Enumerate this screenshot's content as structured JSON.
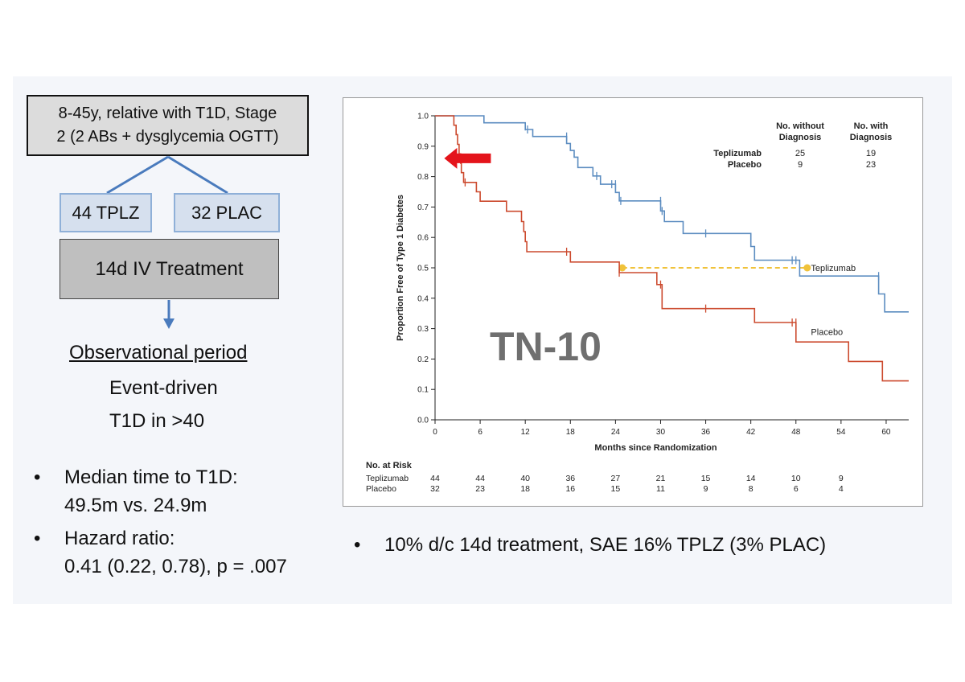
{
  "flow": {
    "top_box": [
      "8-45y, relative with T1D, Stage",
      "2 (2 ABs +  dysglycemia OGTT)"
    ],
    "arm_tplz": "44 TPLZ",
    "arm_plac": "32 PLAC",
    "treatment": "14d IV Treatment",
    "observational": "Observational period",
    "event_driven": "Event-driven",
    "t1d_count": "T1D in >40"
  },
  "bullets": {
    "median_label": "Median time to T1D:",
    "median_value": "49.5m vs. 24.9m",
    "hazard_label": "Hazard ratio:",
    "hazard_value": "0.41 (0.22, 0.78), p = .007",
    "safety": "10% d/c 14d treatment, SAE 16% TPLZ (3% PLAC)",
    "bullet_symbol": "•"
  },
  "colors": {
    "teplizumab": "#5b8cc0",
    "placebo": "#cc4a2e",
    "median_line": "#f0c23a",
    "arrow": "#e4141b",
    "watermark": "#6f6f6f"
  },
  "chart_data": {
    "type": "line",
    "step": true,
    "watermark": "TN-10",
    "xlabel": "Months since Randomization",
    "ylabel": "Proportion Free of Type 1 Diabetes",
    "xlim": [
      0,
      63
    ],
    "ylim": [
      0,
      1.0
    ],
    "xticks": [
      0,
      6,
      12,
      18,
      24,
      30,
      36,
      42,
      48,
      54,
      60
    ],
    "yticks": [
      0.0,
      0.1,
      0.2,
      0.3,
      0.4,
      0.5,
      0.6,
      0.7,
      0.8,
      0.9,
      1.0
    ],
    "grid": false,
    "summary_table": {
      "headers": [
        "No. without Diagnosis",
        "No. with Diagnosis"
      ],
      "rows": [
        {
          "name": "Teplizumab",
          "without": "25",
          "with": "19"
        },
        {
          "name": "Placebo",
          "without": "9",
          "with": "23"
        }
      ]
    },
    "series": [
      {
        "name": "Teplizumab",
        "points": [
          [
            0,
            1.0
          ],
          [
            6.5,
            1.0
          ],
          [
            6.5,
            0.977
          ],
          [
            12,
            0.977
          ],
          [
            12,
            0.955
          ],
          [
            13,
            0.955
          ],
          [
            13,
            0.932
          ],
          [
            17.5,
            0.932
          ],
          [
            17.5,
            0.909
          ],
          [
            18,
            0.909
          ],
          [
            18,
            0.886
          ],
          [
            18.5,
            0.886
          ],
          [
            18.5,
            0.864
          ],
          [
            19,
            0.864
          ],
          [
            19,
            0.83
          ],
          [
            21,
            0.83
          ],
          [
            21,
            0.802
          ],
          [
            22,
            0.802
          ],
          [
            22,
            0.775
          ],
          [
            24,
            0.775
          ],
          [
            24,
            0.748
          ],
          [
            24.5,
            0.748
          ],
          [
            24.5,
            0.72
          ],
          [
            30,
            0.72
          ],
          [
            30,
            0.687
          ],
          [
            30.5,
            0.687
          ],
          [
            30.5,
            0.652
          ],
          [
            33,
            0.652
          ],
          [
            33,
            0.613
          ],
          [
            42,
            0.613
          ],
          [
            42,
            0.57
          ],
          [
            42.5,
            0.57
          ],
          [
            42.5,
            0.525
          ],
          [
            48.5,
            0.525
          ],
          [
            48.5,
            0.473
          ],
          [
            59,
            0.473
          ],
          [
            59,
            0.414
          ],
          [
            59.8,
            0.414
          ],
          [
            59.8,
            0.355
          ],
          [
            63,
            0.355
          ]
        ],
        "censor": [
          [
            12,
            0.965
          ],
          [
            12.3,
            0.955
          ],
          [
            17.5,
            0.932
          ],
          [
            21.5,
            0.802
          ],
          [
            23.5,
            0.775
          ],
          [
            24,
            0.775
          ],
          [
            24.7,
            0.72
          ],
          [
            30,
            0.72
          ],
          [
            30.2,
            0.687
          ],
          [
            36,
            0.613
          ],
          [
            47.5,
            0.525
          ],
          [
            48,
            0.525
          ],
          [
            59,
            0.473
          ]
        ]
      },
      {
        "name": "Placebo",
        "points": [
          [
            0,
            1.0
          ],
          [
            2.5,
            1.0
          ],
          [
            2.5,
            0.969
          ],
          [
            2.8,
            0.969
          ],
          [
            2.8,
            0.938
          ],
          [
            3,
            0.938
          ],
          [
            3,
            0.906
          ],
          [
            3.2,
            0.906
          ],
          [
            3.2,
            0.875
          ],
          [
            3.4,
            0.875
          ],
          [
            3.4,
            0.844
          ],
          [
            3.5,
            0.844
          ],
          [
            3.5,
            0.813
          ],
          [
            3.8,
            0.813
          ],
          [
            3.8,
            0.781
          ],
          [
            5.5,
            0.781
          ],
          [
            5.5,
            0.75
          ],
          [
            6,
            0.75
          ],
          [
            6,
            0.719
          ],
          [
            9.5,
            0.719
          ],
          [
            9.5,
            0.686
          ],
          [
            11.5,
            0.686
          ],
          [
            11.5,
            0.652
          ],
          [
            11.8,
            0.652
          ],
          [
            11.8,
            0.619
          ],
          [
            12,
            0.619
          ],
          [
            12,
            0.586
          ],
          [
            12.2,
            0.586
          ],
          [
            12.2,
            0.553
          ],
          [
            18,
            0.553
          ],
          [
            18,
            0.519
          ],
          [
            24.5,
            0.519
          ],
          [
            24.5,
            0.484
          ],
          [
            29.5,
            0.484
          ],
          [
            29.5,
            0.445
          ],
          [
            30.2,
            0.445
          ],
          [
            30.2,
            0.366
          ],
          [
            42.5,
            0.366
          ],
          [
            42.5,
            0.32
          ],
          [
            48,
            0.32
          ],
          [
            48,
            0.256
          ],
          [
            55,
            0.256
          ],
          [
            55,
            0.192
          ],
          [
            59.5,
            0.192
          ],
          [
            59.5,
            0.128
          ],
          [
            63,
            0.128
          ]
        ],
        "censor": [
          [
            4,
            0.781
          ],
          [
            17.5,
            0.553
          ],
          [
            24.5,
            0.484
          ],
          [
            30,
            0.445
          ],
          [
            36,
            0.366
          ],
          [
            47.5,
            0.32
          ],
          [
            48,
            0.32
          ]
        ]
      }
    ],
    "series_labels": [
      {
        "name": "Teplizumab",
        "x": 48.5,
        "y": 0.5
      },
      {
        "name": "Placebo",
        "x": 48.5,
        "y": 0.29
      }
    ],
    "median_line": {
      "x_start": 24.9,
      "x_end": 49.5,
      "y": 0.5
    },
    "arrow": {
      "x": 5.5,
      "y": 0.86
    },
    "at_risk": {
      "title": "No. at Risk",
      "x": [
        0,
        6,
        12,
        18,
        24,
        30,
        36,
        42,
        48,
        54
      ],
      "rows": [
        {
          "name": "Teplizumab",
          "values": [
            "44",
            "44",
            "40",
            "36",
            "27",
            "21",
            "15",
            "14",
            "10",
            "9"
          ]
        },
        {
          "name": "Placebo",
          "values": [
            "32",
            "23",
            "18",
            "16",
            "15",
            "11",
            "9",
            "8",
            "6",
            "4"
          ]
        }
      ]
    }
  }
}
